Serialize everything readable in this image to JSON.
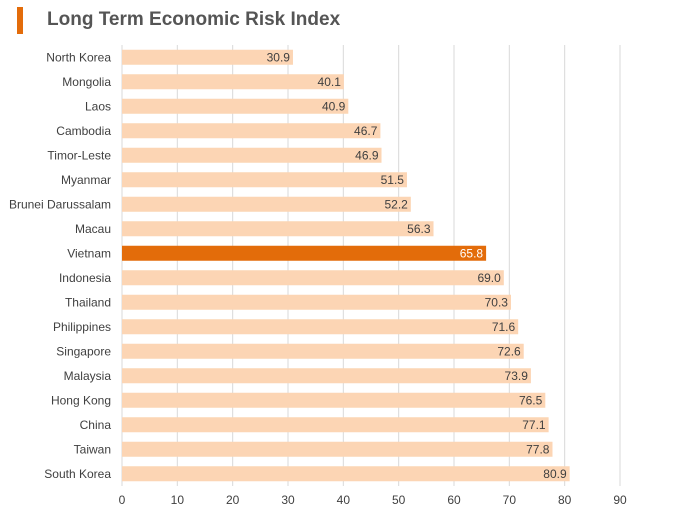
{
  "header": {
    "title": "Long Term Economic Risk Index"
  },
  "colors": {
    "accent": "#e36c0a",
    "bar": "#fcd5b4",
    "highlight": "#e36c0a",
    "grid": "#d9d9d9",
    "text": "#404040"
  },
  "chart_data": {
    "type": "bar",
    "orientation": "horizontal",
    "title": "Long Term Economic Risk Index",
    "xlabel": "",
    "ylabel": "",
    "xlim": [
      0,
      90
    ],
    "xticks": [
      0,
      10,
      20,
      30,
      40,
      50,
      60,
      70,
      80,
      90
    ],
    "grid": true,
    "highlight_category": "Vietnam",
    "categories": [
      "North Korea",
      "Mongolia",
      "Laos",
      "Cambodia",
      "Timor-Leste",
      "Myanmar",
      "Brunei Darussalam",
      "Macau",
      "Vietnam",
      "Indonesia",
      "Thailand",
      "Philippines",
      "Singapore",
      "Malaysia",
      "Hong Kong",
      "China",
      "Taiwan",
      "South Korea"
    ],
    "values": [
      30.9,
      40.1,
      40.9,
      46.7,
      46.9,
      51.5,
      52.2,
      56.3,
      65.8,
      69.0,
      70.3,
      71.6,
      72.6,
      73.9,
      76.5,
      77.1,
      77.8,
      80.9
    ],
    "value_labels": [
      "30.9",
      "40.1",
      "40.9",
      "46.7",
      "46.9",
      "51.5",
      "52.2",
      "56.3",
      "65.8",
      "69.0",
      "70.3",
      "71.6",
      "72.6",
      "73.9",
      "76.5",
      "77.1",
      "77.8",
      "80.9"
    ]
  }
}
